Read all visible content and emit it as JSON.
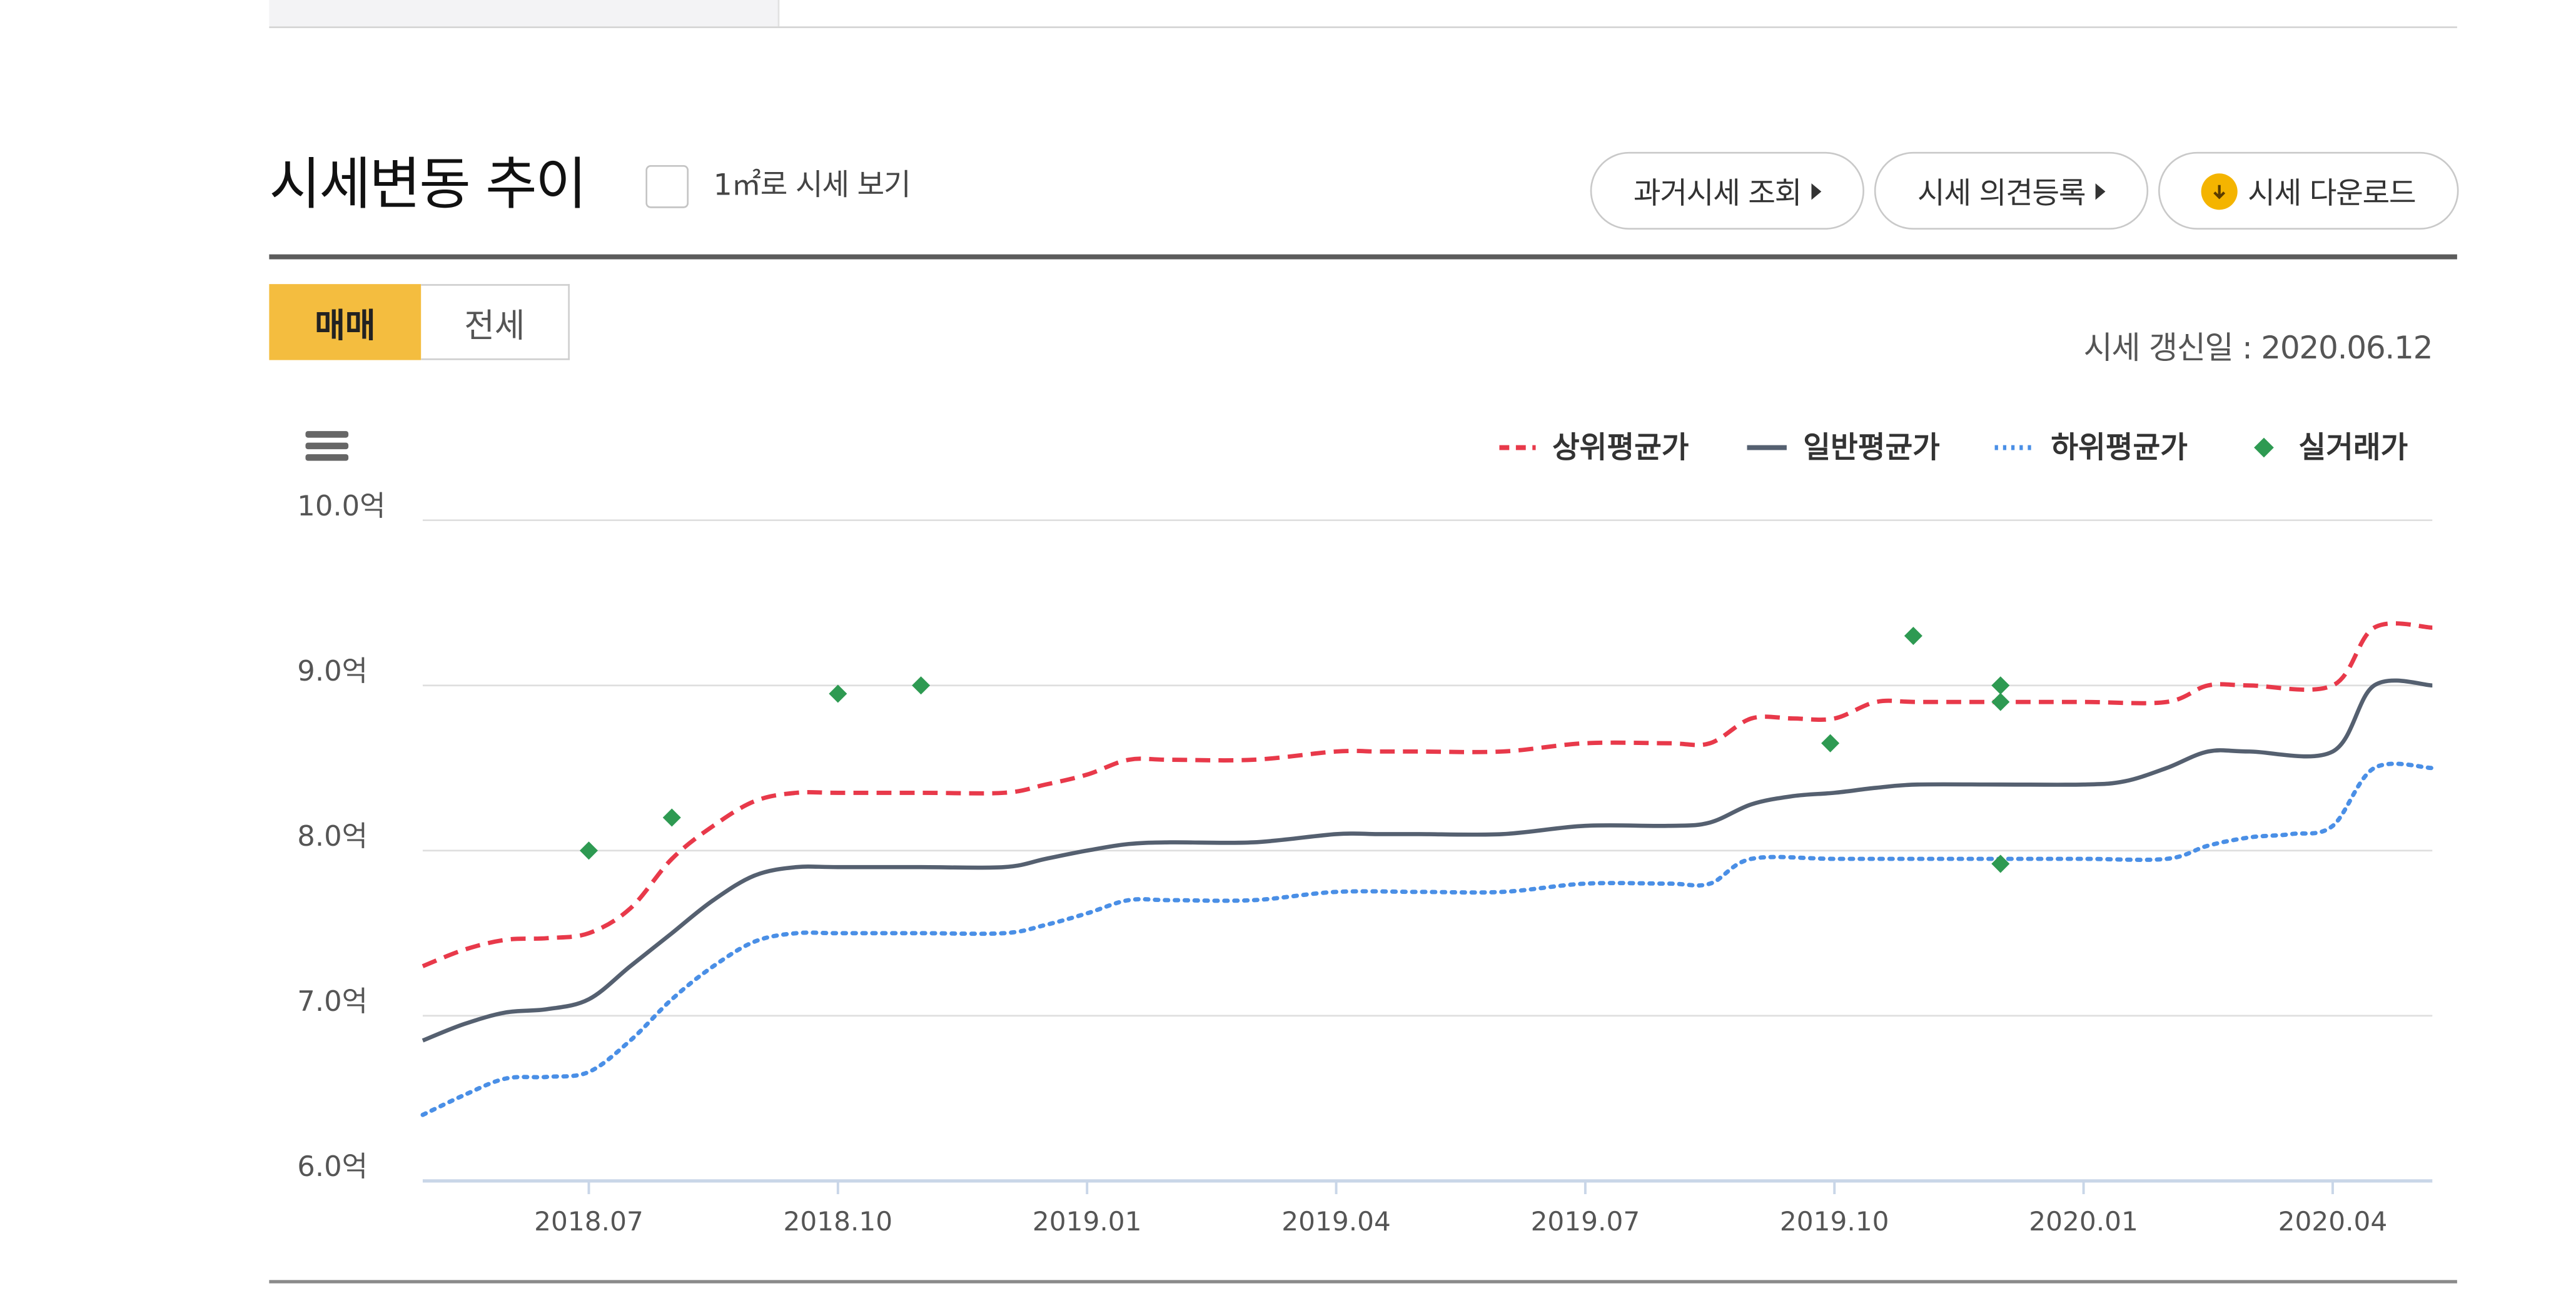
{
  "section": {
    "title": "시세변동 추이",
    "unit_toggle_label": "1㎡로 시세 보기"
  },
  "buttons": {
    "past_price": "과거시세 조회",
    "opinion": "시세 의견등록",
    "download": "시세 다운로드"
  },
  "tabs": {
    "sale": "매매",
    "jeonse": "전세"
  },
  "update_info": "시세 갱신일 : 2020.06.12",
  "colors": {
    "accent": "#f4bd3f",
    "upper": "#e8394a",
    "general": "#556070",
    "lower": "#4a8fe6",
    "actual": "#2e9a52"
  },
  "chart_data": {
    "type": "line",
    "title": "",
    "xlabel": "",
    "ylabel": "",
    "ylim": [
      6.0,
      10.0
    ],
    "y_ticks": [
      {
        "value": 10.0,
        "label": "10.0억"
      },
      {
        "value": 9.0,
        "label": "9.0억"
      },
      {
        "value": 8.0,
        "label": "8.0억"
      },
      {
        "value": 7.0,
        "label": "7.0억"
      },
      {
        "value": 6.0,
        "label": "6.0억"
      }
    ],
    "x_range_months": [
      -1.0,
      23.2
    ],
    "x_ticks": [
      {
        "value": 1,
        "label": "2018.07"
      },
      {
        "value": 4,
        "label": "2018.10"
      },
      {
        "value": 7,
        "label": "2019.01"
      },
      {
        "value": 10,
        "label": "2019.04"
      },
      {
        "value": 13,
        "label": "2019.07"
      },
      {
        "value": 16,
        "label": "2019.10"
      },
      {
        "value": 19,
        "label": "2020.01"
      },
      {
        "value": 22,
        "label": "2020.04"
      }
    ],
    "x_unit_note": "months since 2018.06",
    "legend": [
      "상위평균가",
      "일반평균가",
      "하위평균가",
      "실거래가"
    ],
    "series": [
      {
        "name": "상위평균가",
        "style": "dashed",
        "color": "#e8394a",
        "x": [
          -1,
          -0.5,
          0,
          0.5,
          1,
          1.5,
          2,
          2.5,
          3,
          3.5,
          4,
          5,
          6,
          6.5,
          7,
          7.5,
          8,
          9,
          10,
          10.5,
          11,
          12,
          13,
          14,
          14.5,
          15,
          15.5,
          16,
          16.5,
          17,
          18,
          19,
          20,
          20.5,
          21,
          22,
          22.5,
          23.2
        ],
        "values": [
          7.3,
          7.4,
          7.46,
          7.47,
          7.5,
          7.65,
          7.95,
          8.15,
          8.3,
          8.35,
          8.35,
          8.35,
          8.35,
          8.4,
          8.46,
          8.55,
          8.55,
          8.55,
          8.6,
          8.6,
          8.6,
          8.6,
          8.65,
          8.65,
          8.65,
          8.8,
          8.8,
          8.8,
          8.9,
          8.9,
          8.9,
          8.9,
          8.9,
          9.0,
          9.0,
          9.0,
          9.35,
          9.35
        ]
      },
      {
        "name": "일반평균가",
        "style": "solid",
        "color": "#556070",
        "x": [
          -1,
          -0.5,
          0,
          0.5,
          1,
          1.5,
          2,
          2.5,
          3,
          3.5,
          4,
          5,
          6,
          6.5,
          7,
          7.5,
          8,
          9,
          10,
          10.5,
          11,
          12,
          13,
          14,
          14.5,
          15,
          15.5,
          16,
          16.5,
          17,
          18,
          19,
          19.5,
          20,
          20.5,
          21,
          22,
          22.5,
          23.2
        ],
        "values": [
          6.85,
          6.95,
          7.02,
          7.04,
          7.1,
          7.3,
          7.5,
          7.7,
          7.85,
          7.9,
          7.9,
          7.9,
          7.9,
          7.95,
          8.0,
          8.04,
          8.05,
          8.05,
          8.1,
          8.1,
          8.1,
          8.1,
          8.15,
          8.15,
          8.17,
          8.28,
          8.33,
          8.35,
          8.38,
          8.4,
          8.4,
          8.4,
          8.42,
          8.5,
          8.6,
          8.6,
          8.6,
          9.0,
          9.0
        ]
      },
      {
        "name": "하위평균가",
        "style": "dotted",
        "color": "#4a8fe6",
        "x": [
          -1,
          -0.5,
          0,
          0.5,
          1,
          1.5,
          2,
          2.5,
          3,
          3.5,
          4,
          5,
          6,
          6.5,
          7,
          7.5,
          8,
          9,
          10,
          11,
          12,
          13,
          14,
          14.5,
          15,
          16,
          17,
          18,
          19,
          20,
          20.5,
          21,
          21.5,
          22,
          22.5,
          23.2
        ],
        "values": [
          6.4,
          6.52,
          6.62,
          6.63,
          6.66,
          6.85,
          7.1,
          7.3,
          7.45,
          7.5,
          7.5,
          7.5,
          7.5,
          7.55,
          7.62,
          7.7,
          7.7,
          7.7,
          7.75,
          7.75,
          7.75,
          7.8,
          7.8,
          7.8,
          7.95,
          7.95,
          7.95,
          7.95,
          7.95,
          7.95,
          8.03,
          8.08,
          8.1,
          8.15,
          8.5,
          8.5
        ]
      }
    ],
    "actual_trades": {
      "name": "실거래가",
      "color": "#2e9a52",
      "x": [
        1.0,
        2.0,
        4.0,
        5.0,
        15.95,
        16.95,
        18.0,
        18.0,
        18.0
      ],
      "values": [
        8.0,
        8.2,
        8.95,
        9.0,
        8.65,
        9.3,
        9.0,
        8.9,
        7.92
      ]
    }
  }
}
